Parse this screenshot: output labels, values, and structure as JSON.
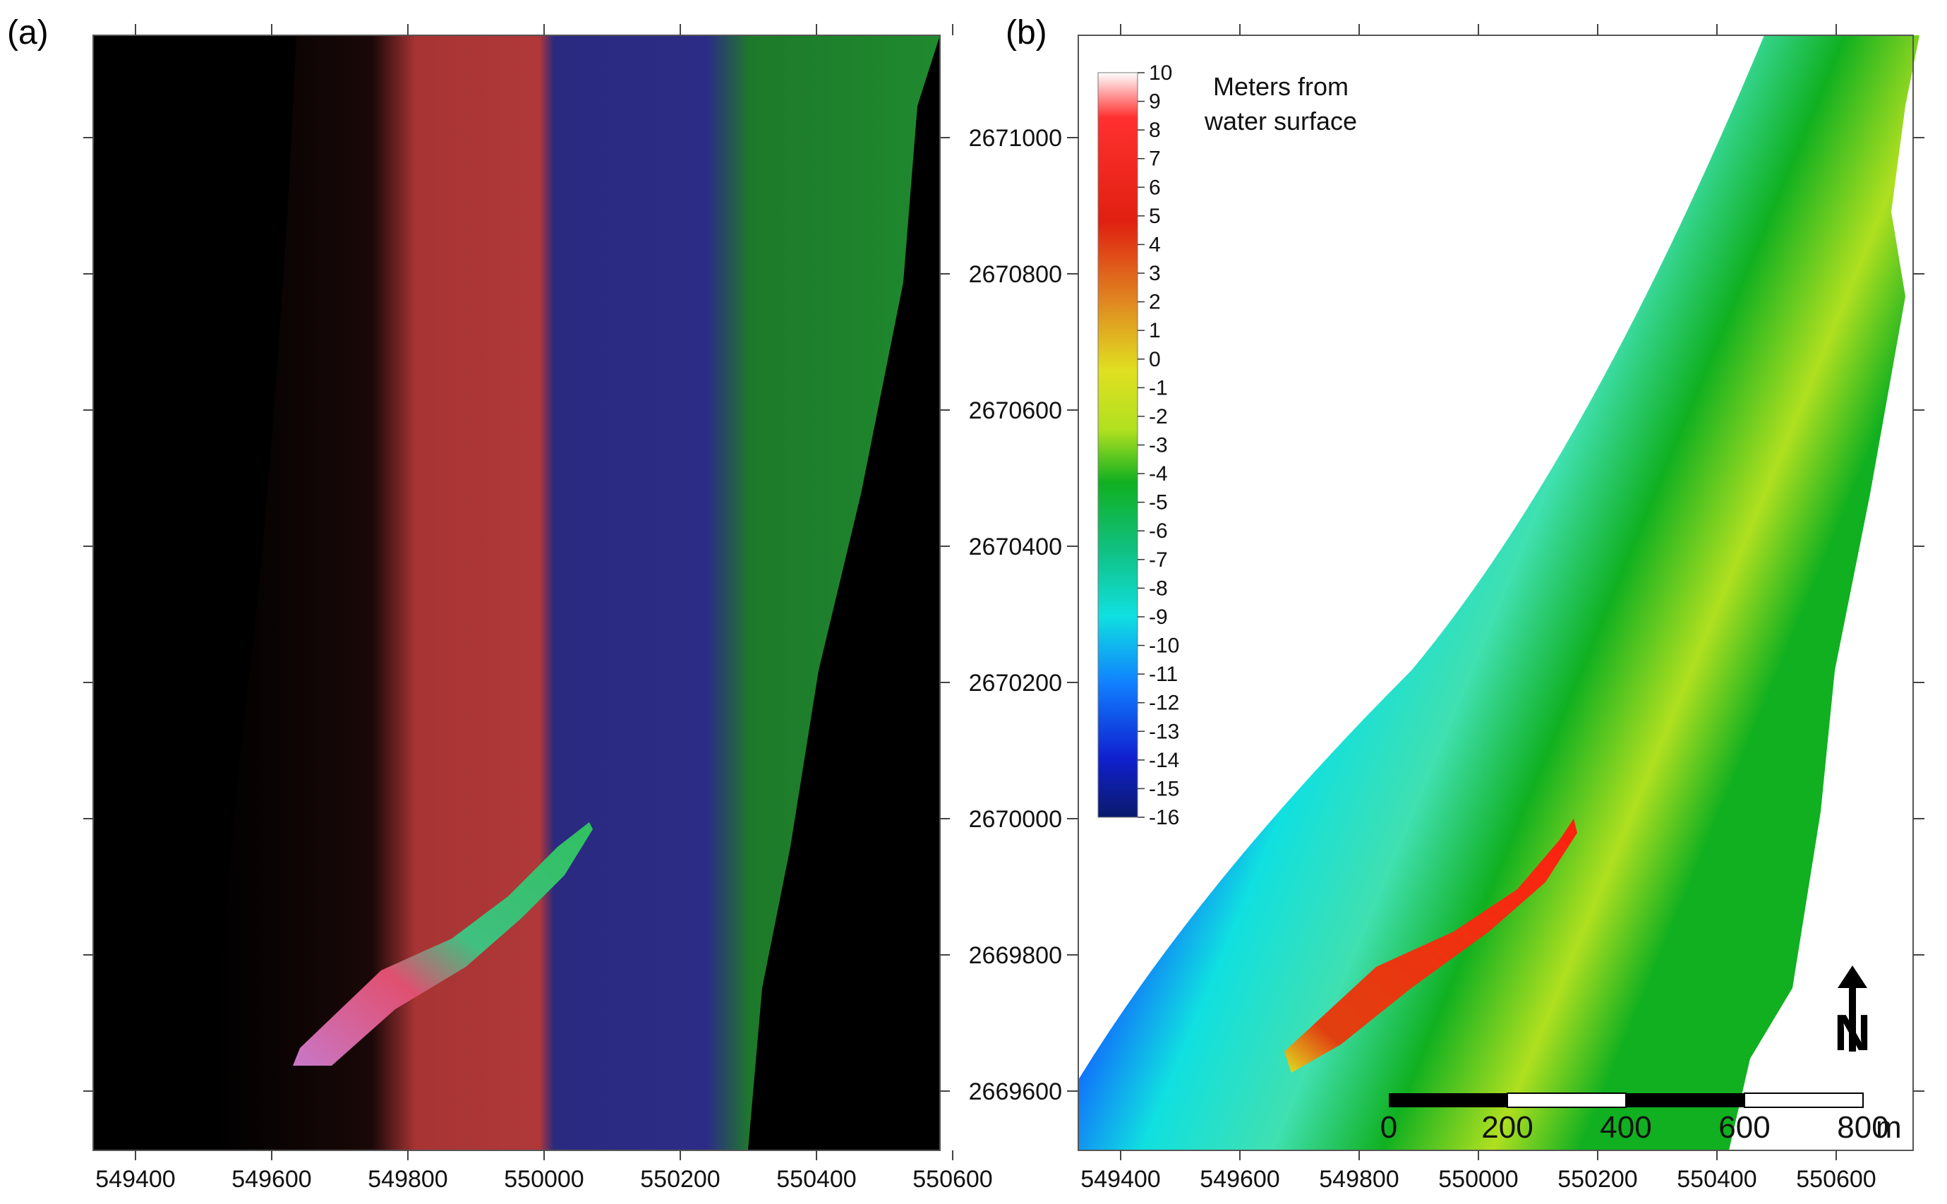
{
  "panel_a": {
    "label": "(a)",
    "x_ticks": [
      "549400",
      "549600",
      "549800",
      "550000",
      "550200",
      "550400",
      "550600"
    ],
    "strip_colors": [
      "#000000",
      "#b83a3a",
      "#2c2c86",
      "#1f8a2e"
    ]
  },
  "panel_b": {
    "label": "(b)",
    "x_ticks": [
      "549400",
      "549600",
      "549800",
      "550000",
      "550200",
      "550400",
      "550600"
    ],
    "y_ticks": [
      "2671000",
      "2670800",
      "2670600",
      "2670400",
      "2670200",
      "2670000",
      "2669800",
      "2669600"
    ],
    "legend": {
      "title_line1": "Meters from",
      "title_line2": "water surface",
      "values": [
        "10",
        "9",
        "8",
        "7",
        "6",
        "5",
        "4",
        "3",
        "2",
        "1",
        "0",
        "-1",
        "-2",
        "-3",
        "-4",
        "-5",
        "-6",
        "-7",
        "-8",
        "-9",
        "-10",
        "-11",
        "-12",
        "-13",
        "-14",
        "-15",
        "-16"
      ]
    },
    "scale_bar": {
      "labels": [
        "0",
        "200",
        "400",
        "600",
        "800"
      ],
      "unit": "m"
    },
    "north_arrow": {
      "letter": "N"
    }
  },
  "colors": {
    "deep": "#0a1a8c",
    "blue": "#1060ff",
    "cyan": "#10e0e0",
    "green": "#10b020",
    "yellow": "#e0e020",
    "red": "#e02010"
  }
}
